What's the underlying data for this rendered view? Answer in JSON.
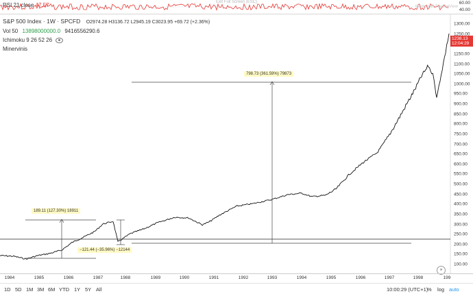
{
  "rsi": {
    "label": "RSI 21 close",
    "value": "47.57",
    "exit_fullscreen": "Exit Full Screen (ESC)",
    "watermark": "Made with TradingView",
    "scale_top": "60.00",
    "scale_bottom": "40.00"
  },
  "legend": {
    "title": "S&P 500 Index · 1W · SPCFD",
    "ohlc": "O2974.28 H3136.72 L2945.19 C3023.95 +69.72 (+2.36%)",
    "vol_label": "Vol 50",
    "vol_value": "13898000000.0",
    "vol_ma": "9416556290.6",
    "ichimoku": "Ichimoku 9 26 52 26",
    "minervini": "Minervinis"
  },
  "price_scale": [
    "1300.00",
    "1250.00",
    "1200.00",
    "1150.00",
    "1100.00",
    "1050.00",
    "1000.00",
    "950.00",
    "900.00",
    "850.00",
    "800.00",
    "750.00",
    "700.00",
    "650.00",
    "600.00",
    "550.00",
    "500.00",
    "450.00",
    "400.00",
    "350.00",
    "300.00",
    "250.00",
    "200.00",
    "150.00",
    "100.00"
  ],
  "price_tag": {
    "price": "1238.13",
    "time": "12:04:29"
  },
  "annotations": {
    "measure1": "189.11 (127.30%) 18911",
    "measure2": "−121.44 (−35.96%) −12144",
    "measure3": "798.73 (361.59%) 79873"
  },
  "time_axis": [
    "1984",
    "1985",
    "1986",
    "1987",
    "1988",
    "1989",
    "1990",
    "1991",
    "1992",
    "1993",
    "1994",
    "1995",
    "1996",
    "1997",
    "1998",
    "199"
  ],
  "bottom": {
    "ranges": [
      "1D",
      "5D",
      "1M",
      "3M",
      "6M",
      "YTD",
      "1Y",
      "5Y",
      "All"
    ],
    "clock": "10:00:29 (UTC+1)",
    "percent": "%",
    "log": "log",
    "auto": "auto"
  },
  "colors": {
    "rsi": "#e53935",
    "price": "#111111",
    "tag": "#e53935",
    "anno_bg": "#fff9c4"
  }
}
